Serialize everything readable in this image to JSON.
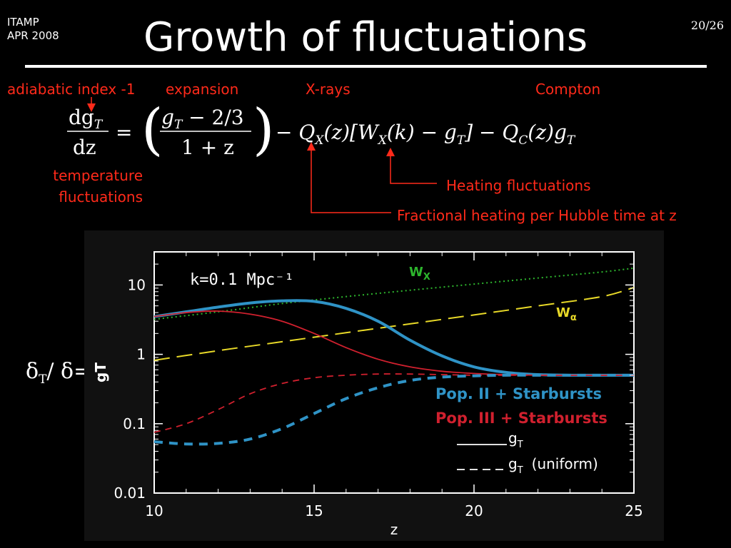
{
  "header": {
    "org": "ITAMP",
    "date": "APR 2008",
    "title": "Growth of fluctuations",
    "page_number": "20/26"
  },
  "annotations": {
    "adiabatic": "adiabatic index -1",
    "expansion": "expansion",
    "xrays": "X-rays",
    "compton": "Compton",
    "temperature_line1": "temperature",
    "temperature_line2": "fluctuations",
    "heating": "Heating fluctuations",
    "fractional": "Fractional heating per Hubble time at z"
  },
  "equation": {
    "lhs_num": "dg",
    "lhs_num_sub": "T",
    "lhs_den": "dz",
    "eq": "=",
    "frac_num": "g",
    "frac_num_tail": " − 2/3",
    "frac_den": "1 + z",
    "rest": "− Q",
    "rest_x": "X",
    "rest2": "(z)[W",
    "rest3": "(k) − g",
    "rest4": "] − Q",
    "rest_c": "C",
    "rest5": "(z)g",
    "sub_t": "T"
  },
  "ylabel": {
    "text": "δ",
    "sub": "T",
    "text2": "/ δ="
  },
  "colors": {
    "red": "#ff2a1a",
    "popII": "#2f93c6",
    "popIII": "#d0202e",
    "wx": "#2db52d",
    "walpha": "#e8d928",
    "background": "#000000"
  },
  "chart_data": {
    "type": "line",
    "ylog": true,
    "xlim": [
      10,
      25
    ],
    "ylim": [
      0.01,
      30
    ],
    "xlabel": "z",
    "ylabel_rotated": "gT",
    "x_ticks": [
      "10",
      "15",
      "20",
      "25"
    ],
    "y_ticks": [
      "0.01",
      "0.1",
      "1",
      "10"
    ],
    "annotation": "k=0.1  Mpc⁻¹",
    "series_labels": {
      "wx": "W",
      "wx_sub": "X",
      "walpha": "W",
      "walpha_sub": "α"
    },
    "legend": {
      "popII": "Pop. II + Starbursts",
      "popIII": "Pop. III + Starbursts",
      "solid": "g",
      "solid_sub": "T",
      "dashed": "g",
      "dashed_sub": "T",
      "dashed_suffix": "(uniform)"
    },
    "series": [
      {
        "key": "wx",
        "style": "dotted",
        "x": [
          10,
          12,
          14,
          16,
          18,
          20,
          22,
          24,
          25
        ],
        "y": [
          3.2,
          4.1,
          5.4,
          6.8,
          8.4,
          10.3,
          12.6,
          15.4,
          17.5
        ]
      },
      {
        "key": "walpha",
        "style": "longdash",
        "x": [
          10,
          12,
          14,
          16,
          18,
          20,
          22,
          24,
          25
        ],
        "y": [
          0.82,
          1.13,
          1.52,
          2.05,
          2.75,
          3.7,
          5.0,
          6.8,
          9.2
        ]
      },
      {
        "key": "popII",
        "style": "solid-thick",
        "x": [
          10,
          11,
          12,
          13,
          14,
          15,
          16,
          17,
          18,
          19,
          20,
          21,
          22,
          23,
          24,
          25
        ],
        "y": [
          3.5,
          4.1,
          4.8,
          5.5,
          5.9,
          5.8,
          4.6,
          3.0,
          1.6,
          0.95,
          0.66,
          0.55,
          0.51,
          0.5,
          0.5,
          0.5
        ]
      },
      {
        "key": "popIII",
        "style": "solid-thin",
        "x": [
          10,
          11,
          12,
          13,
          14,
          15,
          16,
          17,
          18,
          19,
          20,
          21,
          22,
          23,
          24,
          25
        ],
        "y": [
          3.5,
          4.0,
          4.2,
          3.8,
          3.0,
          2.0,
          1.25,
          0.85,
          0.66,
          0.57,
          0.53,
          0.51,
          0.5,
          0.5,
          0.5,
          0.5
        ]
      },
      {
        "key": "popIII_uniform",
        "style": "dashed-thin",
        "x": [
          10,
          11,
          12,
          13,
          14,
          15,
          16,
          17,
          18,
          19,
          20,
          21,
          22,
          23,
          24,
          25
        ],
        "y": [
          0.075,
          0.1,
          0.16,
          0.27,
          0.38,
          0.46,
          0.5,
          0.52,
          0.52,
          0.51,
          0.5,
          0.5,
          0.5,
          0.5,
          0.5,
          0.5
        ]
      },
      {
        "key": "popII_uniform",
        "style": "dashed-thick",
        "x": [
          10,
          11,
          12,
          13,
          14,
          15,
          16,
          17,
          18,
          19,
          20,
          21,
          22,
          23,
          24,
          25
        ],
        "y": [
          0.055,
          0.051,
          0.052,
          0.06,
          0.085,
          0.14,
          0.23,
          0.33,
          0.42,
          0.47,
          0.49,
          0.5,
          0.5,
          0.5,
          0.5,
          0.5
        ]
      }
    ]
  }
}
